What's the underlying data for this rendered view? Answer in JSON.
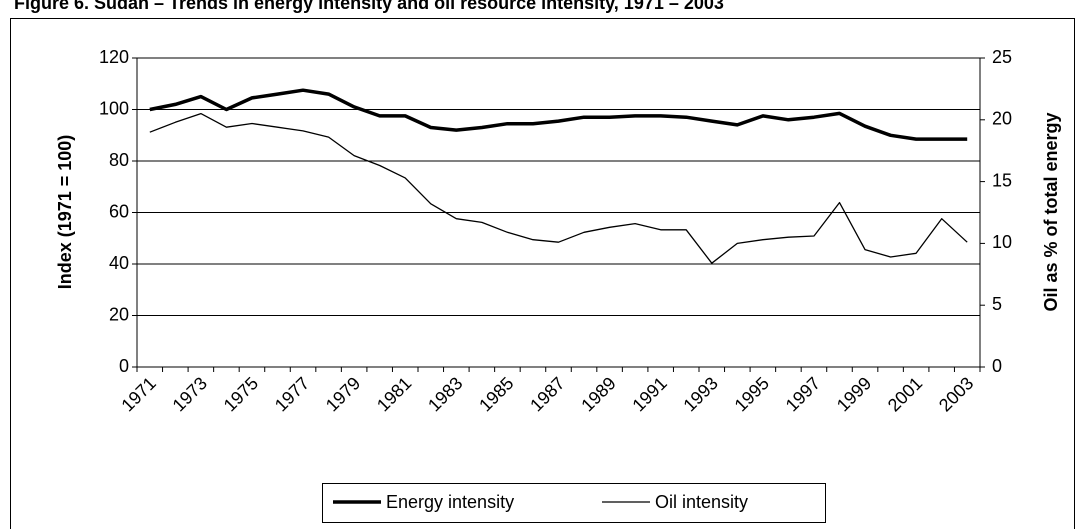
{
  "chart_data": {
    "type": "line",
    "title": "Figure 6. Sudan – Trends in energy intensity and oil resource intensity, 1971 – 2003",
    "y_label": "Index (1971 = 100)",
    "y2_label": "Oil as % of total energy",
    "categories": [
      "1971",
      null,
      "1973",
      null,
      "1975",
      null,
      "1977",
      null,
      "1979",
      null,
      "1981",
      null,
      "1983",
      null,
      "1985",
      null,
      "1987",
      null,
      "1989",
      null,
      "1991",
      null,
      "1993",
      null,
      "1995",
      null,
      "1997",
      null,
      "1999",
      null,
      "2001",
      null,
      "2003"
    ],
    "series": [
      {
        "name": "Energy intensity",
        "color": "#000000",
        "values": [
          100,
          102,
          105,
          100,
          104.5,
          106,
          107.5,
          106,
          101,
          97.5,
          97.5,
          93,
          92,
          93,
          94.5,
          94.5,
          95.5,
          97,
          97,
          97.5,
          97.5,
          97,
          95.5,
          94,
          97.5,
          96,
          97,
          98.5,
          93.5,
          90,
          88.5,
          88.5,
          88.5
        ]
      },
      {
        "name": "Oil intensity",
        "color": "#000000",
        "axis": "y2",
        "values": [
          19.0,
          19.8,
          20.5,
          19.4,
          19.7,
          19.4,
          19.1,
          18.6,
          17.1,
          16.3,
          15.3,
          13.2,
          12.0,
          11.7,
          10.9,
          10.3,
          10.1,
          10.9,
          11.3,
          11.6,
          11.1,
          11.1,
          8.4,
          10.0,
          10.3,
          10.5,
          10.6,
          13.3,
          9.5,
          8.9,
          9.2,
          12.0,
          10.1
        ]
      }
    ],
    "ylim": [
      0,
      120
    ],
    "yticks": [
      0,
      20,
      40,
      60,
      80,
      100,
      120
    ],
    "y2lim": [
      0,
      25
    ],
    "y2ticks": [
      0,
      5,
      10,
      15,
      20,
      25
    ],
    "grid": true,
    "legend": "bottom"
  }
}
